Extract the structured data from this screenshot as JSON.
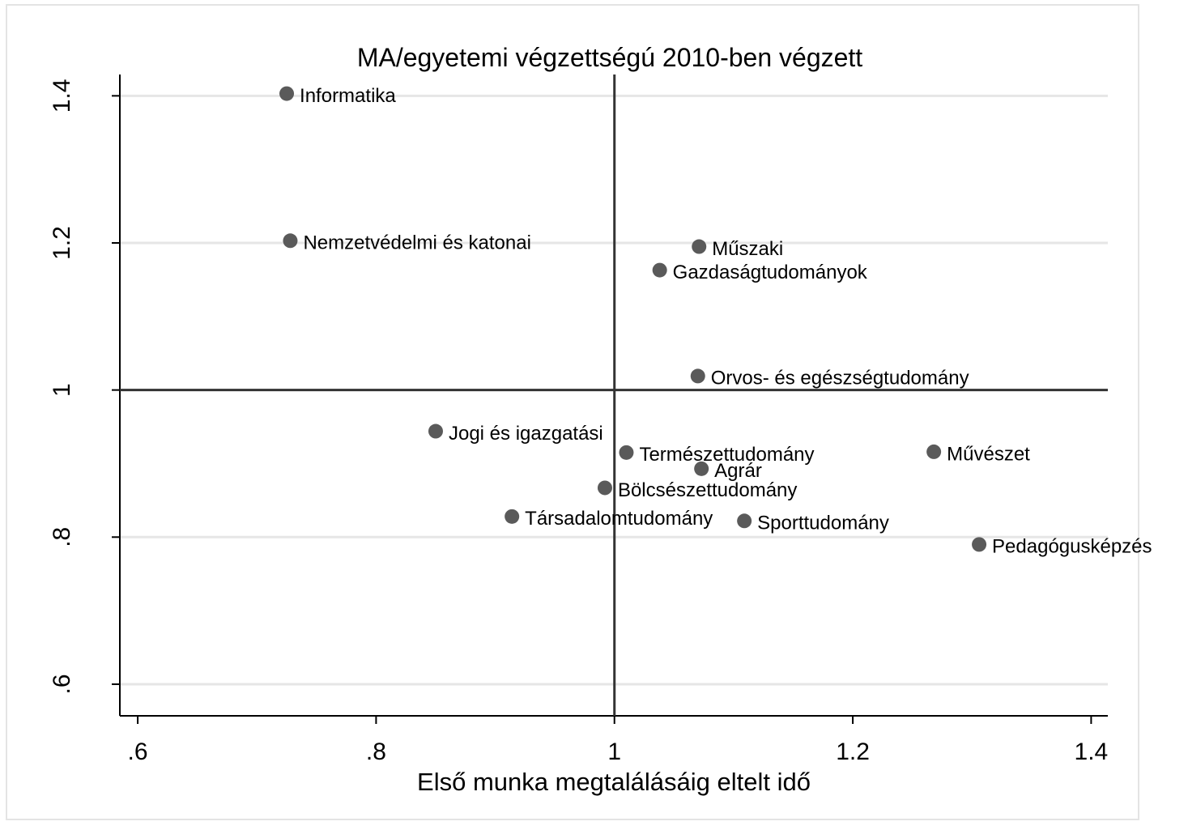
{
  "chart_data": {
    "type": "scatter",
    "title": "MA/egyetemi  végzettségú 2010-ben végzett",
    "xlabel": "Első munka megtalálásáig eltelt idő",
    "point_labels": [
      "Informatika",
      "Nemzetvédelmi és katonai",
      "Műszaki",
      "Gazdaságtudományok",
      "Orvos- és egészségtudomány",
      "Jogi és igazgatási",
      "Természettudomány",
      "Művészet",
      "Agrár",
      "Bölcsészettudomány",
      "Társadalomtudomány",
      "Sporttudomány",
      "Pedagógusképzés"
    ],
    "x": [
      0.725,
      0.728,
      1.071,
      1.038,
      1.07,
      0.85,
      1.01,
      1.268,
      1.073,
      0.992,
      0.914,
      1.109,
      1.306
    ],
    "values": [
      1.403,
      1.203,
      1.195,
      1.163,
      1.019,
      0.944,
      0.915,
      0.916,
      0.893,
      0.867,
      0.828,
      0.822,
      0.79
    ],
    "color": "#5a5a5a",
    "xlim": [
      0.585,
      1.414
    ],
    "ylim": [
      0.557,
      1.429
    ],
    "xticks": [
      {
        "value": 0.6,
        "label": ".6"
      },
      {
        "value": 0.8,
        "label": ".8"
      },
      1,
      1.2,
      1.4
    ],
    "yticks": [
      {
        "value": 0.6,
        "label": ".6"
      },
      {
        "value": 0.8,
        "label": ".8"
      },
      1,
      1.2,
      1.4
    ],
    "xline": 1,
    "yline": 1,
    "grid": true
  }
}
